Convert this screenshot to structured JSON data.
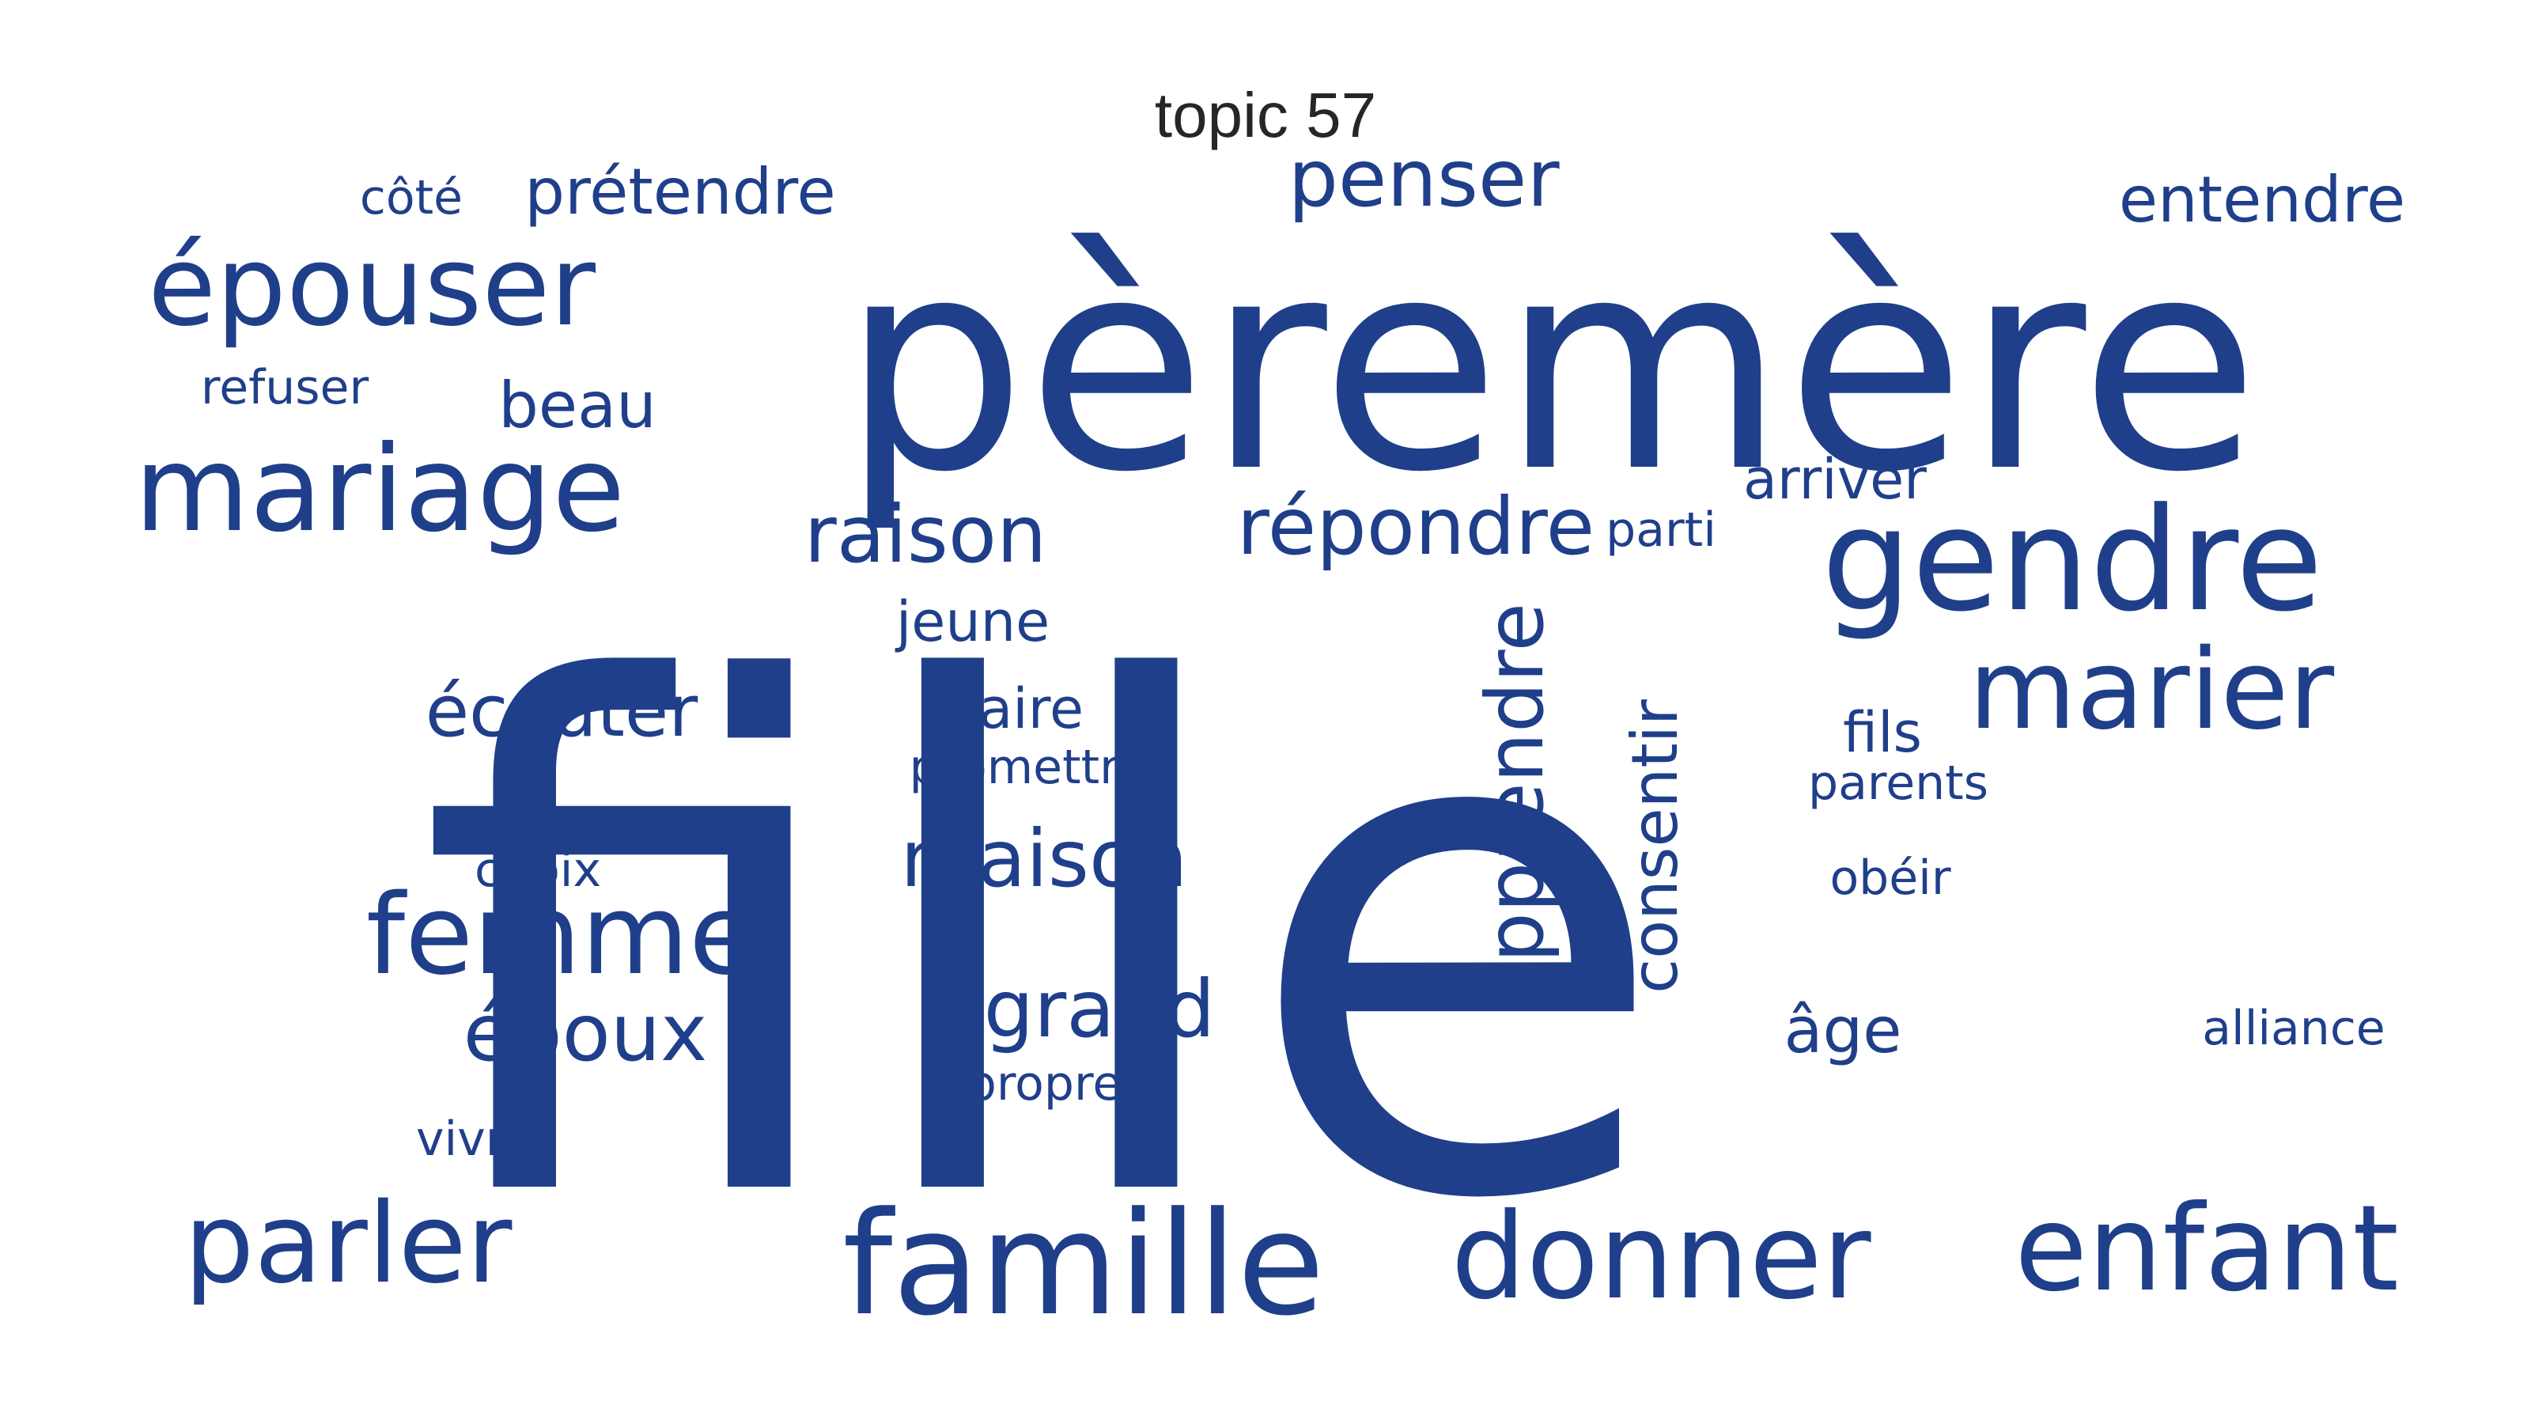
{
  "title": "topic 57",
  "word_color": "#1f3f8a",
  "words": [
    {
      "text": "fille"
    },
    {
      "text": "pèremère"
    },
    {
      "text": "gendre"
    },
    {
      "text": "mariage"
    },
    {
      "text": "épouser"
    },
    {
      "text": "marier"
    },
    {
      "text": "enfant"
    },
    {
      "text": "famille"
    },
    {
      "text": "donner"
    },
    {
      "text": "parler"
    },
    {
      "text": "femme"
    },
    {
      "text": "penser"
    },
    {
      "text": "raison"
    },
    {
      "text": "répondre"
    },
    {
      "text": "apprendre"
    },
    {
      "text": "époux"
    },
    {
      "text": "grand"
    },
    {
      "text": "maison"
    },
    {
      "text": "écouter"
    },
    {
      "text": "prétendre"
    },
    {
      "text": "entendre"
    },
    {
      "text": "consentir"
    },
    {
      "text": "arriver"
    },
    {
      "text": "beau"
    },
    {
      "text": "jeune"
    },
    {
      "text": "taire"
    },
    {
      "text": "côté"
    },
    {
      "text": "refuser"
    },
    {
      "text": "parti"
    },
    {
      "text": "fils"
    },
    {
      "text": "parents"
    },
    {
      "text": "promettre"
    },
    {
      "text": "choix"
    },
    {
      "text": "obéir"
    },
    {
      "text": "âge"
    },
    {
      "text": "alliance"
    },
    {
      "text": "propre"
    },
    {
      "text": "vivre"
    }
  ]
}
